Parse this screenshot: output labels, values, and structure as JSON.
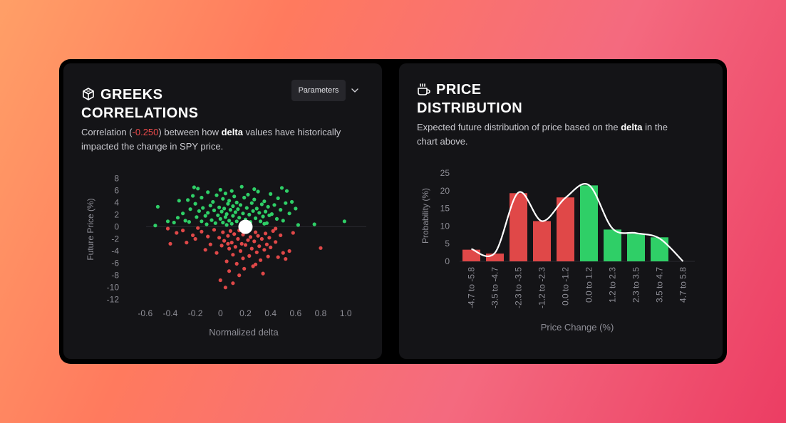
{
  "left_panel": {
    "title_lines": [
      "GREEKS",
      "CORRELATIONS"
    ],
    "icon": "cube-icon",
    "params_label": "Parameters",
    "desc": {
      "prefix": "Correlation (",
      "value": "-0.250",
      "mid": ") between how ",
      "keyword": "delta",
      "suffix_line1": " values have historically",
      "line2": "impacted the change in SPY price."
    }
  },
  "right_panel": {
    "title_lines": [
      "PRICE",
      "DISTRIBUTION"
    ],
    "icon": "coffee-cup-icon",
    "desc": {
      "prefix": "Expected future distribution of price based on the ",
      "keyword": "delta",
      "suffix_line1": " in the",
      "line2": "chart above."
    }
  },
  "colors": {
    "positive": "#2fcf67",
    "negative": "#e04848",
    "curve": "#ffffff",
    "axis_text": "#8e8e96"
  },
  "chart_data": [
    {
      "type": "scatter",
      "xlabel": "Normalized delta",
      "ylabel": "Future Price (%)",
      "xlim": [
        -0.65,
        1.05
      ],
      "ylim": [
        -12.5,
        8.5
      ],
      "x_ticks": [
        -0.6,
        -0.4,
        -0.2,
        0,
        0.2,
        0.4,
        0.6,
        0.8,
        1.0
      ],
      "x_tick_labels": [
        "-0.6",
        "-0.4",
        "-0.2",
        "0",
        "0.2",
        "0.4",
        "0.6",
        "0.8",
        "1.0"
      ],
      "y_ticks": [
        8,
        6,
        4,
        2,
        0,
        -2,
        -4,
        -6,
        -8,
        -10,
        -12
      ],
      "y_tick_labels": [
        "8",
        "6",
        "4",
        "2",
        "0",
        "-2",
        "-4",
        "-6",
        "-8",
        "-10",
        "-12"
      ],
      "current_point": {
        "x": 0.2,
        "y": 0
      },
      "series": [
        {
          "sign": "positive",
          "points": [
            [
              -0.52,
              0.2
            ],
            [
              -0.5,
              3.3
            ],
            [
              -0.42,
              0.9
            ],
            [
              -0.37,
              0.7
            ],
            [
              -0.34,
              1.5
            ],
            [
              -0.33,
              4.3
            ],
            [
              -0.3,
              2.2
            ],
            [
              -0.28,
              1.0
            ],
            [
              -0.26,
              4.4
            ],
            [
              -0.25,
              0.8
            ],
            [
              -0.24,
              2.9
            ],
            [
              -0.22,
              5.1
            ],
            [
              -0.21,
              6.5
            ],
            [
              -0.2,
              3.8
            ],
            [
              -0.19,
              1.6
            ],
            [
              -0.18,
              6.3
            ],
            [
              -0.17,
              2.6
            ],
            [
              -0.15,
              0.9
            ],
            [
              -0.15,
              4.8
            ],
            [
              -0.14,
              3.1
            ],
            [
              -0.12,
              1.8
            ],
            [
              -0.1,
              5.7
            ],
            [
              -0.1,
              2.3
            ],
            [
              -0.08,
              3.5
            ],
            [
              -0.07,
              1.1
            ],
            [
              -0.06,
              4.1
            ],
            [
              -0.05,
              2.7
            ],
            [
              -0.04,
              0.6
            ],
            [
              -0.03,
              5.2
            ],
            [
              -0.02,
              1.9
            ],
            [
              -0.01,
              3.2
            ],
            [
              0.0,
              6.1
            ],
            [
              0.0,
              1.3
            ],
            [
              0.01,
              2.5
            ],
            [
              0.02,
              4.6
            ],
            [
              0.02,
              0.7
            ],
            [
              0.03,
              3.0
            ],
            [
              0.04,
              1.6
            ],
            [
              0.04,
              5.5
            ],
            [
              0.05,
              2.1
            ],
            [
              0.06,
              3.8
            ],
            [
              0.07,
              1.0
            ],
            [
              0.07,
              4.3
            ],
            [
              0.08,
              2.8
            ],
            [
              0.09,
              0.5
            ],
            [
              0.1,
              3.4
            ],
            [
              0.1,
              1.8
            ],
            [
              0.11,
              5.0
            ],
            [
              0.12,
              2.4
            ],
            [
              0.13,
              0.9
            ],
            [
              0.13,
              4.0
            ],
            [
              0.14,
              2.9
            ],
            [
              0.15,
              1.5
            ],
            [
              0.16,
              3.6
            ],
            [
              0.17,
              6.6
            ],
            [
              0.18,
              2.2
            ],
            [
              0.19,
              4.8
            ],
            [
              0.2,
              1.2
            ],
            [
              0.21,
              3.1
            ],
            [
              0.22,
              5.3
            ],
            [
              0.23,
              2.0
            ],
            [
              0.24,
              0.8
            ],
            [
              0.25,
              3.9
            ],
            [
              0.26,
              2.6
            ],
            [
              0.27,
              4.5
            ],
            [
              0.28,
              1.4
            ],
            [
              0.29,
              3.0
            ],
            [
              0.3,
              5.8
            ],
            [
              0.31,
              2.3
            ],
            [
              0.32,
              0.9
            ],
            [
              0.33,
              3.7
            ],
            [
              0.34,
              1.7
            ],
            [
              0.35,
              4.2
            ],
            [
              0.36,
              2.5
            ],
            [
              0.37,
              0.6
            ],
            [
              0.38,
              3.3
            ],
            [
              0.39,
              1.9
            ],
            [
              0.4,
              5.4
            ],
            [
              0.41,
              2.1
            ],
            [
              0.43,
              3.6
            ],
            [
              0.45,
              1.3
            ],
            [
              0.46,
              4.7
            ],
            [
              0.48,
              2.8
            ],
            [
              0.49,
              6.4
            ],
            [
              0.5,
              1.0
            ],
            [
              0.52,
              3.9
            ],
            [
              0.53,
              5.9
            ],
            [
              0.55,
              2.2
            ],
            [
              0.57,
              4.1
            ],
            [
              0.6,
              3.0
            ],
            [
              0.62,
              0.3
            ],
            [
              0.75,
              0.4
            ],
            [
              0.99,
              0.9
            ],
            [
              0.27,
              6.2
            ],
            [
              0.09,
              5.9
            ],
            [
              -0.11,
              0.4
            ],
            [
              0.05,
              0.3
            ],
            [
              0.35,
              0.5
            ]
          ]
        },
        {
          "sign": "negative",
          "points": [
            [
              -0.42,
              -0.3
            ],
            [
              -0.4,
              -2.8
            ],
            [
              -0.35,
              -1.0
            ],
            [
              -0.3,
              -0.6
            ],
            [
              -0.27,
              -2.6
            ],
            [
              -0.22,
              -1.4
            ],
            [
              -0.2,
              -2.0
            ],
            [
              -0.15,
              -0.8
            ],
            [
              -0.12,
              -3.8
            ],
            [
              -0.1,
              -1.6
            ],
            [
              -0.08,
              -2.9
            ],
            [
              -0.05,
              -0.5
            ],
            [
              -0.03,
              -4.3
            ],
            [
              -0.01,
              -1.8
            ],
            [
              0.0,
              -8.8
            ],
            [
              0.01,
              -3.1
            ],
            [
              0.02,
              -0.9
            ],
            [
              0.03,
              -2.3
            ],
            [
              0.04,
              -10.0
            ],
            [
              0.05,
              -5.7
            ],
            [
              0.06,
              -1.5
            ],
            [
              0.07,
              -3.6
            ],
            [
              0.07,
              -7.3
            ],
            [
              0.08,
              -0.7
            ],
            [
              0.09,
              -2.6
            ],
            [
              0.1,
              -4.6
            ],
            [
              0.1,
              -9.3
            ],
            [
              0.11,
              -1.2
            ],
            [
              0.12,
              -3.3
            ],
            [
              0.13,
              -6.1
            ],
            [
              0.14,
              -2.0
            ],
            [
              0.15,
              -0.6
            ],
            [
              0.16,
              -4.0
            ],
            [
              0.17,
              -2.8
            ],
            [
              0.18,
              -1.3
            ],
            [
              0.18,
              -5.2
            ],
            [
              0.2,
              -3.0
            ],
            [
              0.21,
              -0.8
            ],
            [
              0.22,
              -2.2
            ],
            [
              0.23,
              -4.8
            ],
            [
              0.24,
              -1.7
            ],
            [
              0.25,
              -3.6
            ],
            [
              0.26,
              -6.5
            ],
            [
              0.27,
              -2.4
            ],
            [
              0.28,
              -0.9
            ],
            [
              0.29,
              -4.2
            ],
            [
              0.3,
              -1.5
            ],
            [
              0.31,
              -3.2
            ],
            [
              0.32,
              -5.5
            ],
            [
              0.33,
              -2.0
            ],
            [
              0.34,
              -7.7
            ],
            [
              0.35,
              -3.8
            ],
            [
              0.36,
              -1.1
            ],
            [
              0.37,
              -2.9
            ],
            [
              0.38,
              -4.9
            ],
            [
              0.39,
              -1.8
            ],
            [
              0.4,
              -3.4
            ],
            [
              0.42,
              -0.7
            ],
            [
              0.44,
              -2.5
            ],
            [
              0.46,
              -5.0
            ],
            [
              0.48,
              -1.4
            ],
            [
              0.5,
              -4.3
            ],
            [
              0.52,
              -5.3
            ],
            [
              0.55,
              -4.0
            ],
            [
              0.58,
              -1.0
            ],
            [
              0.8,
              -3.5
            ],
            [
              0.06,
              -2.8
            ],
            [
              0.19,
              -6.9
            ],
            [
              -0.18,
              -0.2
            ],
            [
              0.28,
              -6.2
            ],
            [
              0.15,
              -8.0
            ],
            [
              0.44,
              -0.3
            ]
          ]
        }
      ]
    },
    {
      "type": "bar",
      "xlabel": "Price Change (%)",
      "ylabel": "Probability (%)",
      "ylim": [
        0,
        25
      ],
      "y_ticks": [
        0,
        5,
        10,
        15,
        20,
        25
      ],
      "y_tick_labels": [
        "0",
        "5",
        "10",
        "15",
        "20",
        "25"
      ],
      "categories": [
        "-4.7 to -5.8",
        "-3.5 to -4.7",
        "-2.3 to -3.5",
        "-1.2 to -2.3",
        "0.0 to -1.2",
        "0.0 to 1.2",
        "1.2 to 2.3",
        "2.3 to 3.5",
        "3.5 to 4.7",
        "4.7 to 5.8"
      ],
      "values": [
        3.3,
        2.2,
        19.3,
        11.4,
        18.1,
        21.5,
        9.0,
        7.8,
        6.8,
        0
      ],
      "bar_signs": [
        "negative",
        "negative",
        "negative",
        "negative",
        "negative",
        "positive",
        "positive",
        "positive",
        "positive",
        "positive"
      ],
      "curve": [
        3.5,
        2.4,
        19.5,
        11.4,
        18.0,
        21.6,
        9.3,
        8.0,
        6.5,
        0
      ]
    }
  ]
}
